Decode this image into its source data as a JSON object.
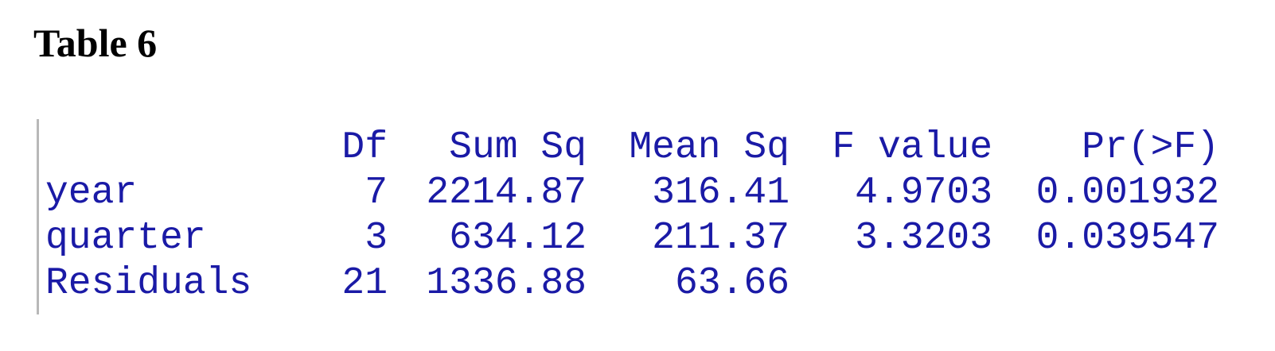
{
  "title": "Table 6",
  "anova": {
    "columns": [
      "Df",
      "Sum Sq",
      "Mean Sq",
      "F value",
      "Pr(>F)"
    ],
    "rows": [
      {
        "term": "year",
        "df": "7",
        "sum_sq": "2214.87",
        "mean_sq": "316.41",
        "f_value": "4.9703",
        "p_value": "0.001932"
      },
      {
        "term": "quarter",
        "df": "3",
        "sum_sq": "634.12",
        "mean_sq": "211.37",
        "f_value": "3.3203",
        "p_value": "0.039547"
      },
      {
        "term": "Residuals",
        "df": "21",
        "sum_sq": "1336.88",
        "mean_sq": "63.66",
        "f_value": "",
        "p_value": ""
      }
    ]
  },
  "colors": {
    "console_text": "#1a1aa6",
    "title_text": "#000000",
    "console_border": "#b8b8b8"
  }
}
